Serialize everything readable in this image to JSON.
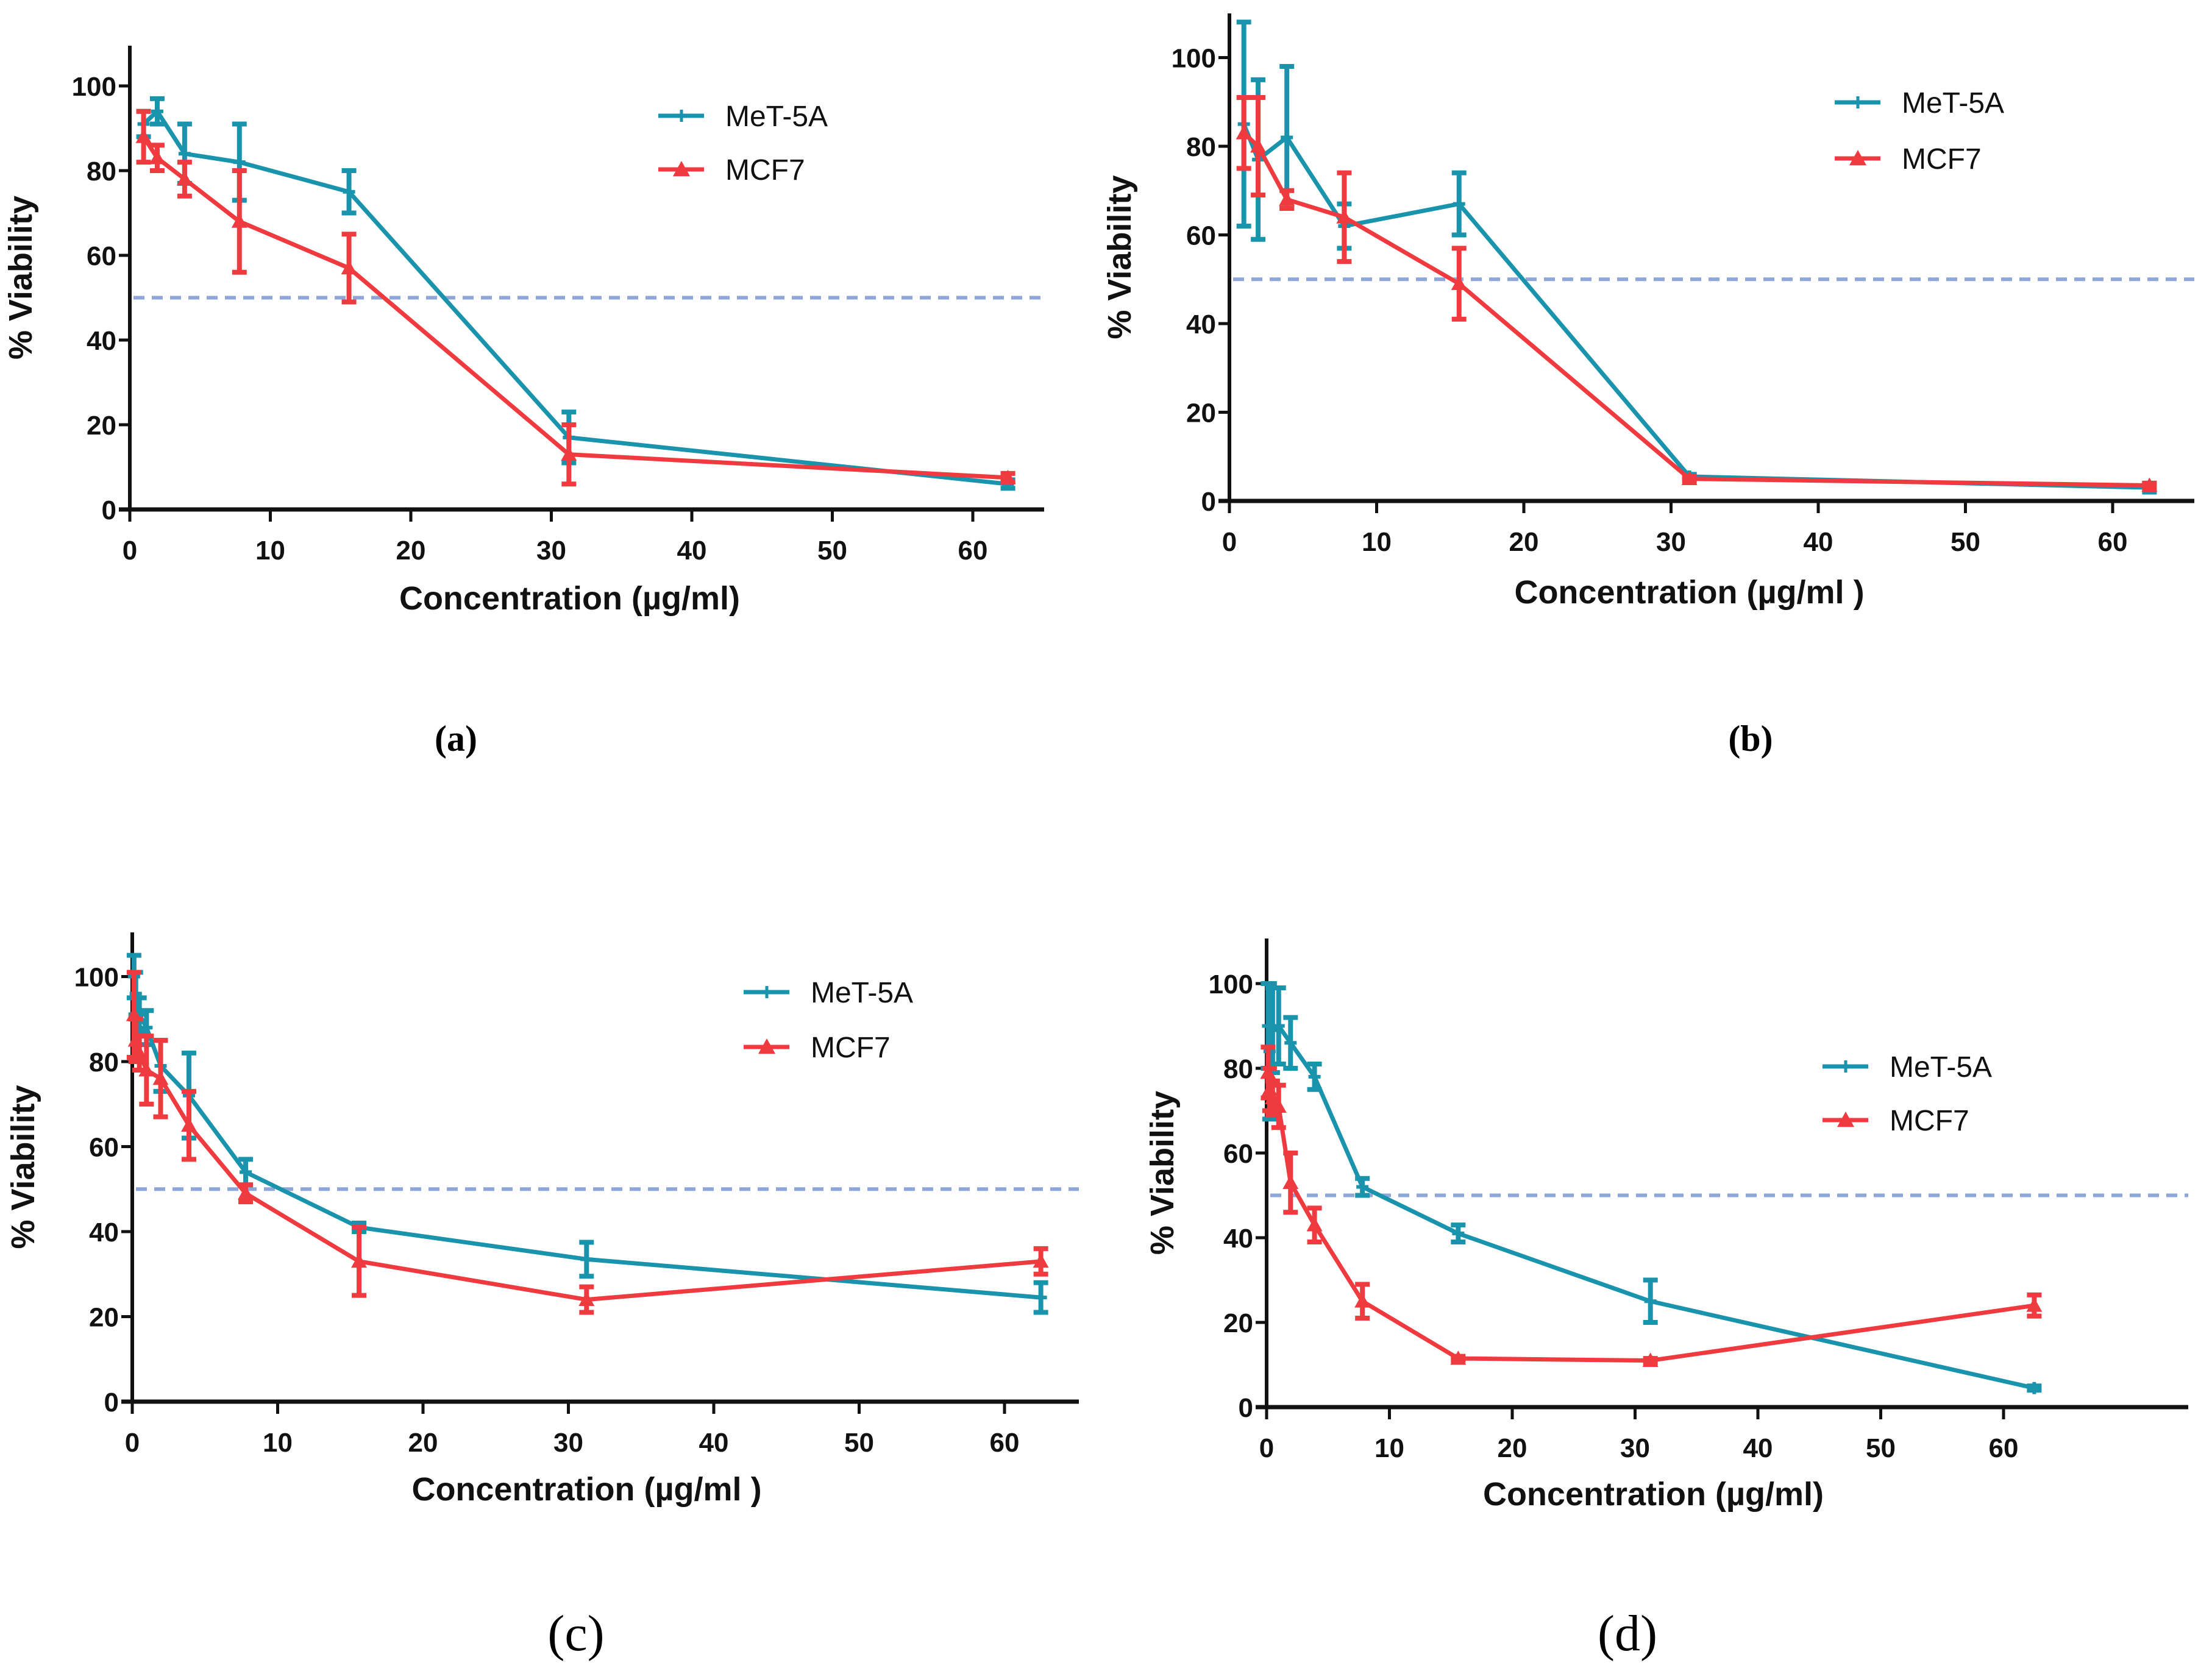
{
  "colors": {
    "met5a": "#1a93ad",
    "mcf7": "#ef3a3f",
    "threshold": "#8fa6d8",
    "axis": "#111111"
  },
  "chart_data": [
    {
      "id": "a",
      "type": "line",
      "panel_label": "(a)",
      "xlabel": "Concentration (µg/ml)",
      "ylabel": "% Viability",
      "xlim": [
        0,
        65
      ],
      "ylim": [
        0,
        110
      ],
      "xticks": [
        0,
        10,
        20,
        30,
        40,
        50,
        60
      ],
      "yticks": [
        0,
        20,
        40,
        60,
        80,
        100
      ],
      "threshold_line": 50,
      "grid": false,
      "legend_position": "top-right",
      "series": [
        {
          "name": "MeT-5A",
          "marker": "star",
          "x": [
            0.98,
            1.95,
            3.9,
            7.8,
            15.6,
            31.25,
            62.5
          ],
          "y": [
            91,
            94,
            84,
            82,
            75,
            17,
            6
          ],
          "err": [
            3,
            3,
            7,
            9,
            5,
            6,
            1
          ]
        },
        {
          "name": "MCF7",
          "marker": "triangle",
          "x": [
            0.98,
            1.95,
            3.9,
            7.8,
            15.6,
            31.25,
            62.5
          ],
          "y": [
            88,
            83,
            78,
            68,
            57,
            13,
            7.5
          ],
          "err": [
            6,
            3,
            4,
            12,
            8,
            7,
            1
          ]
        }
      ]
    },
    {
      "id": "b",
      "type": "line",
      "panel_label": "(b)",
      "xlabel": "Concentration (µg/ml )",
      "ylabel": "% Viability",
      "xlim": [
        0,
        65
      ],
      "ylim": [
        0,
        110
      ],
      "xticks": [
        0,
        10,
        20,
        30,
        40,
        50,
        60
      ],
      "yticks": [
        0,
        20,
        40,
        60,
        80,
        100
      ],
      "threshold_line": 50,
      "grid": false,
      "legend_position": "top-right",
      "series": [
        {
          "name": "MeT-5A",
          "marker": "star",
          "x": [
            0.98,
            1.95,
            3.9,
            7.8,
            15.6,
            31.25,
            62.5
          ],
          "y": [
            85,
            77,
            82,
            62,
            67,
            5.5,
            3
          ],
          "err": [
            23,
            18,
            16,
            5,
            7,
            0.5,
            1
          ]
        },
        {
          "name": "MCF7",
          "marker": "triangle",
          "x": [
            0.98,
            1.95,
            3.9,
            7.8,
            15.6,
            31.25,
            62.5
          ],
          "y": [
            83,
            80,
            68,
            64,
            49,
            5,
            3.5
          ],
          "err": [
            8,
            11,
            2,
            10,
            8,
            0.5,
            0.5
          ]
        }
      ]
    },
    {
      "id": "c",
      "type": "line",
      "panel_label": "(c)",
      "xlabel": "Concentration (µg/ml )",
      "ylabel": "% Viability",
      "xlim": [
        0,
        65
      ],
      "ylim": [
        0,
        110
      ],
      "xticks": [
        0,
        10,
        20,
        30,
        40,
        50,
        60
      ],
      "yticks": [
        0,
        20,
        40,
        60,
        80,
        100
      ],
      "threshold_line": 50,
      "grid": false,
      "legend_position": "top-right",
      "series": [
        {
          "name": "MeT-5A",
          "marker": "star",
          "x": [
            0.12,
            0.24,
            0.49,
            0.98,
            1.95,
            3.9,
            7.8,
            15.6,
            31.25,
            62.5
          ],
          "y": [
            100,
            96,
            91,
            88,
            79,
            72,
            54,
            41,
            33.5,
            24.5
          ],
          "err": [
            5,
            5,
            4,
            4,
            6,
            10,
            3,
            1,
            4,
            3.5
          ]
        },
        {
          "name": "MCF7",
          "marker": "triangle",
          "x": [
            0.12,
            0.24,
            0.49,
            0.98,
            1.95,
            3.9,
            7.8,
            15.6,
            31.25,
            62.5
          ],
          "y": [
            91,
            85,
            82,
            78,
            76,
            65,
            49,
            33,
            24,
            33
          ],
          "err": [
            10,
            5,
            4,
            8,
            9,
            8,
            2,
            8,
            3,
            3
          ]
        }
      ]
    },
    {
      "id": "d",
      "type": "line",
      "panel_label": "(d)",
      "xlabel": "Concentration (µg/ml)",
      "ylabel": "% Viability",
      "xlim": [
        0,
        65
      ],
      "ylim": [
        0,
        110
      ],
      "xticks": [
        0,
        10,
        20,
        30,
        40,
        50,
        60
      ],
      "yticks": [
        0,
        20,
        40,
        60,
        80,
        100
      ],
      "threshold_line": 50,
      "grid": false,
      "legend_position": "top-right",
      "series": [
        {
          "name": "MeT-5A",
          "marker": "star",
          "x": [
            0.12,
            0.24,
            0.49,
            0.98,
            1.95,
            3.9,
            7.8,
            15.6,
            31.25,
            62.5
          ],
          "y": [
            90,
            84,
            89,
            90,
            86,
            78,
            52,
            41,
            25,
            4.5
          ],
          "err": [
            10,
            16,
            10,
            9,
            6,
            3,
            2,
            2,
            5,
            0.5
          ]
        },
        {
          "name": "MCF7",
          "marker": "triangle",
          "x": [
            0.12,
            0.24,
            0.49,
            0.98,
            1.95,
            3.9,
            7.8,
            15.6,
            31.25,
            62.5
          ],
          "y": [
            79,
            75,
            73,
            71,
            53,
            43,
            25,
            11.5,
            11,
            24
          ],
          "err": [
            6,
            5,
            4,
            5,
            7,
            4,
            4,
            0.5,
            0.5,
            2.5
          ]
        }
      ]
    }
  ]
}
